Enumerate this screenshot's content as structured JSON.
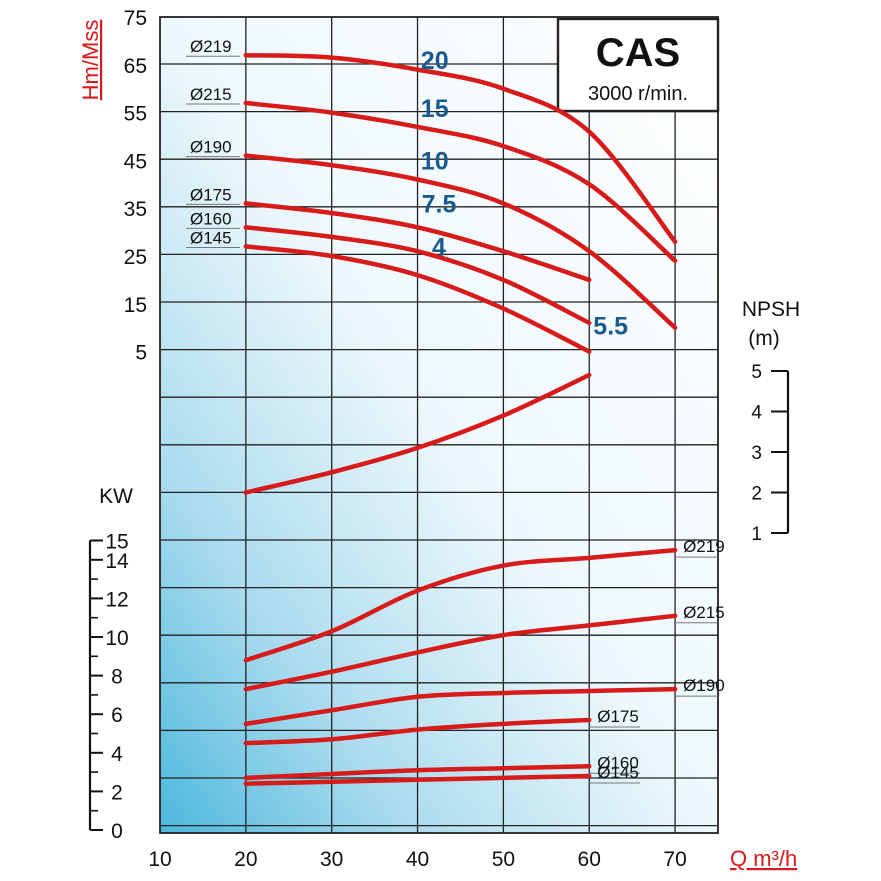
{
  "chart_data": {
    "type": "line",
    "title": "CAS",
    "subtitle": "3000 r/min.",
    "xlabel": "Q m³/h",
    "xlim": [
      10,
      75
    ],
    "x_ticks": [
      "10",
      "20",
      "30",
      "40",
      "50",
      "60",
      "70"
    ],
    "grid": true,
    "head": {
      "ylabel": "Hm/Mss",
      "ylim": [
        5,
        75
      ],
      "y_ticks": [
        "75",
        "65",
        "55",
        "45",
        "35",
        "25",
        "15",
        "5"
      ],
      "series": [
        {
          "name": "Ø219",
          "x": [
            20,
            30,
            40,
            50,
            60,
            70
          ],
          "y": [
            67,
            66.5,
            64,
            60,
            51,
            28
          ]
        },
        {
          "name": "Ø215",
          "x": [
            20,
            30,
            40,
            50,
            60,
            70
          ],
          "y": [
            57,
            55,
            52,
            48,
            40,
            24
          ]
        },
        {
          "name": "Ø190",
          "x": [
            20,
            30,
            40,
            50,
            60,
            70
          ],
          "y": [
            46,
            44,
            41,
            36,
            26,
            10
          ]
        },
        {
          "name": "Ø175",
          "x": [
            20,
            30,
            40,
            50,
            60
          ],
          "y": [
            36,
            34,
            31,
            26,
            20
          ]
        },
        {
          "name": "Ø160",
          "x": [
            20,
            30,
            40,
            50,
            60
          ],
          "y": [
            31,
            29,
            26,
            20,
            11
          ]
        },
        {
          "name": "Ø145",
          "x": [
            20,
            30,
            40,
            50,
            60
          ],
          "y": [
            27,
            25,
            21,
            14,
            5
          ]
        }
      ],
      "motor_labels": [
        {
          "label": "20",
          "x": 42,
          "y": 66
        },
        {
          "label": "15",
          "x": 42,
          "y": 56
        },
        {
          "label": "10",
          "x": 42,
          "y": 45
        },
        {
          "label": "7.5",
          "x": 42.5,
          "y": 36
        },
        {
          "label": "4",
          "x": 42.5,
          "y": 27
        },
        {
          "label": "5.5",
          "x": 62.5,
          "y": 10.5
        }
      ]
    },
    "npsh": {
      "ylabel": "NPSH",
      "unit": "(m)",
      "ylim": [
        1,
        5
      ],
      "y_ticks": [
        "5",
        "4",
        "3",
        "2",
        "1"
      ],
      "x": [
        20,
        30,
        40,
        50,
        60
      ],
      "y": [
        2.0,
        2.5,
        3.1,
        3.9,
        4.9
      ]
    },
    "power": {
      "ylabel": "KW",
      "ylim": [
        0,
        15
      ],
      "y_ticks": [
        "0",
        "2",
        "4",
        "6",
        "8",
        "10",
        "12",
        "14",
        "15"
      ],
      "series": [
        {
          "name": "Ø219",
          "x": [
            20,
            30,
            40,
            50,
            60,
            70
          ],
          "y": [
            8.8,
            10.3,
            12.4,
            13.7,
            14.1,
            14.5
          ]
        },
        {
          "name": "Ø215",
          "x": [
            20,
            30,
            40,
            50,
            60,
            70
          ],
          "y": [
            7.3,
            8.2,
            9.2,
            10.1,
            10.6,
            11.1
          ]
        },
        {
          "name": "Ø190",
          "x": [
            20,
            30,
            40,
            50,
            60,
            70
          ],
          "y": [
            5.5,
            6.2,
            6.9,
            7.1,
            7.2,
            7.3
          ]
        },
        {
          "name": "Ø175",
          "x": [
            20,
            30,
            40,
            50,
            60
          ],
          "y": [
            4.5,
            4.7,
            5.2,
            5.5,
            5.7
          ]
        },
        {
          "name": "Ø160",
          "x": [
            20,
            30,
            40,
            50,
            60
          ],
          "y": [
            2.7,
            2.9,
            3.1,
            3.2,
            3.3
          ]
        },
        {
          "name": "Ø145",
          "x": [
            20,
            30,
            40,
            50,
            60
          ],
          "y": [
            2.4,
            2.5,
            2.6,
            2.7,
            2.8
          ]
        }
      ]
    }
  }
}
